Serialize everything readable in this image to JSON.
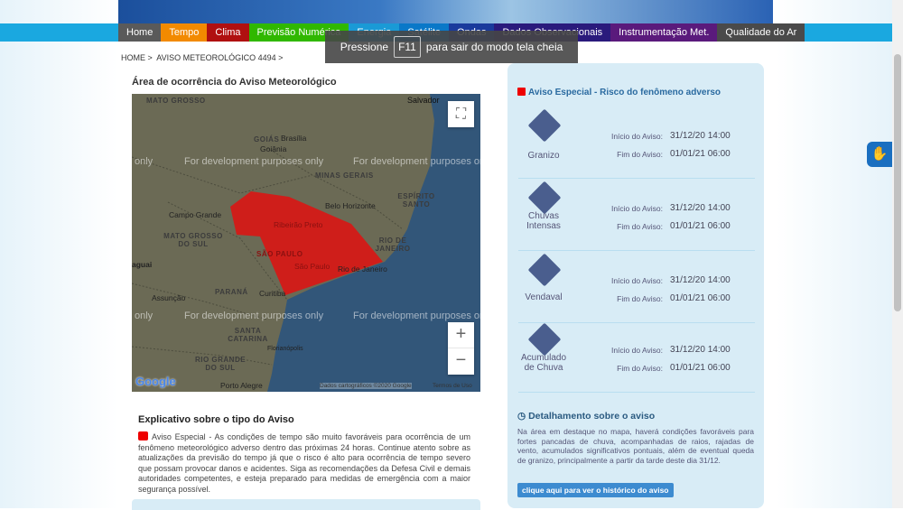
{
  "nav": [
    {
      "label": "Home",
      "color": "#5a5a5a"
    },
    {
      "label": "Tempo",
      "color": "#f28a00"
    },
    {
      "label": "Clima",
      "color": "#b01010"
    },
    {
      "label": "Previsão Numérica",
      "color": "#30b800"
    },
    {
      "label": "Energia",
      "color": "#1a9ad6"
    },
    {
      "label": "Satélite",
      "color": "#0a78c8"
    },
    {
      "label": "Ondas",
      "color": "#1a3a9c"
    },
    {
      "label": "Dados Observacionais",
      "color": "#2a1a7c"
    },
    {
      "label": "Instrumentação Met.",
      "color": "#5a1a7c"
    },
    {
      "label": "Qualidade do Ar",
      "color": "#4a4a4a"
    }
  ],
  "fullscreen_notice": {
    "pre": "Pressione",
    "key": "F11",
    "post": "para sair do modo tela cheia"
  },
  "breadcrumb": {
    "home": "HOME >",
    "current": "AVISO METEOROLÓGICO 4494 >"
  },
  "map_title": "Área de ocorrência do Aviso Meteorológico",
  "map": {
    "watermark": "For development purposes only",
    "watermark_partial": "only",
    "attribution": "Dados cartográficos ©2020 Google",
    "terms": "Termos de Uso",
    "logo": "Google",
    "warning_color": "#e01010",
    "labels": {
      "mato_grosso": "MATO GROSSO",
      "salvador": "Salvador",
      "goias": "GOIÁS",
      "brasilia": "Brasília",
      "goiania": "Goiânia",
      "minas": "MINAS GERAIS",
      "bh": "Belo Horizonte",
      "es": "ESPÍRITO SANTO",
      "cg": "Campo Grande",
      "ms": "MATO GROSSO DO SUL",
      "rp": "Ribeirão Preto",
      "rj_state": "RIO DE JANEIRO",
      "sp_state": "SÃO PAULO",
      "sp": "São Paulo",
      "rj": "Rio de Janeiro",
      "paraguai": "aguai",
      "parana": "PARANÁ",
      "curitiba": "Curitiba",
      "assuncao": "Assunção",
      "sc": "SANTA CATARINA",
      "floripa": "Florianópolis",
      "rs": "RIO GRANDE DO SUL",
      "poa": "Porto Alegre"
    }
  },
  "explain": {
    "title": "Explicativo sobre o tipo do Aviso",
    "text": "Aviso Especial - As condições de tempo são muito favoráveis para ocorrência de um fenômeno meteorológico adverso dentro das próximas 24 horas. Continue atento sobre as atualizações da previsão do tempo já que o risco é alto para ocorrência de tempo severo que possam provocar danos e acidentes. Siga as recomendações da Defesa Civil e demais autoridades competentes, e esteja preparado para medidas de emergência com a maior segurança possível."
  },
  "panel": {
    "title": "Aviso Especial - Risco do fenômeno adverso",
    "start_label": "Início do Aviso:",
    "end_label": "Fim do Aviso:",
    "items": [
      {
        "name": "Granizo",
        "icon": "hail-icon",
        "start": "31/12/20 14:00",
        "end": "01/01/21 06:00"
      },
      {
        "name": "Chuvas Intensas",
        "icon": "heavy-rain-icon",
        "start": "31/12/20 14:00",
        "end": "01/01/21 06:00"
      },
      {
        "name": "Vendaval",
        "icon": "wind-icon",
        "start": "31/12/20 14:00",
        "end": "01/01/21 06:00"
      },
      {
        "name": "Acumulado de Chuva",
        "icon": "rain-accumulation-icon",
        "start": "31/12/20 14:00",
        "end": "01/01/21 06:00"
      }
    ],
    "detail_title": "Detalhamento sobre o aviso",
    "detail_text": "Na área em destaque no mapa, haverá condições favoráveis para fortes pancadas de chuva, acompanhadas de raios, rajadas de vento, acumulados significativos pontuais, além de eventual queda de granizo, principalmente a partir da tarde deste dia 31/12.",
    "history_button": "clique aqui para ver o histórico do aviso"
  }
}
